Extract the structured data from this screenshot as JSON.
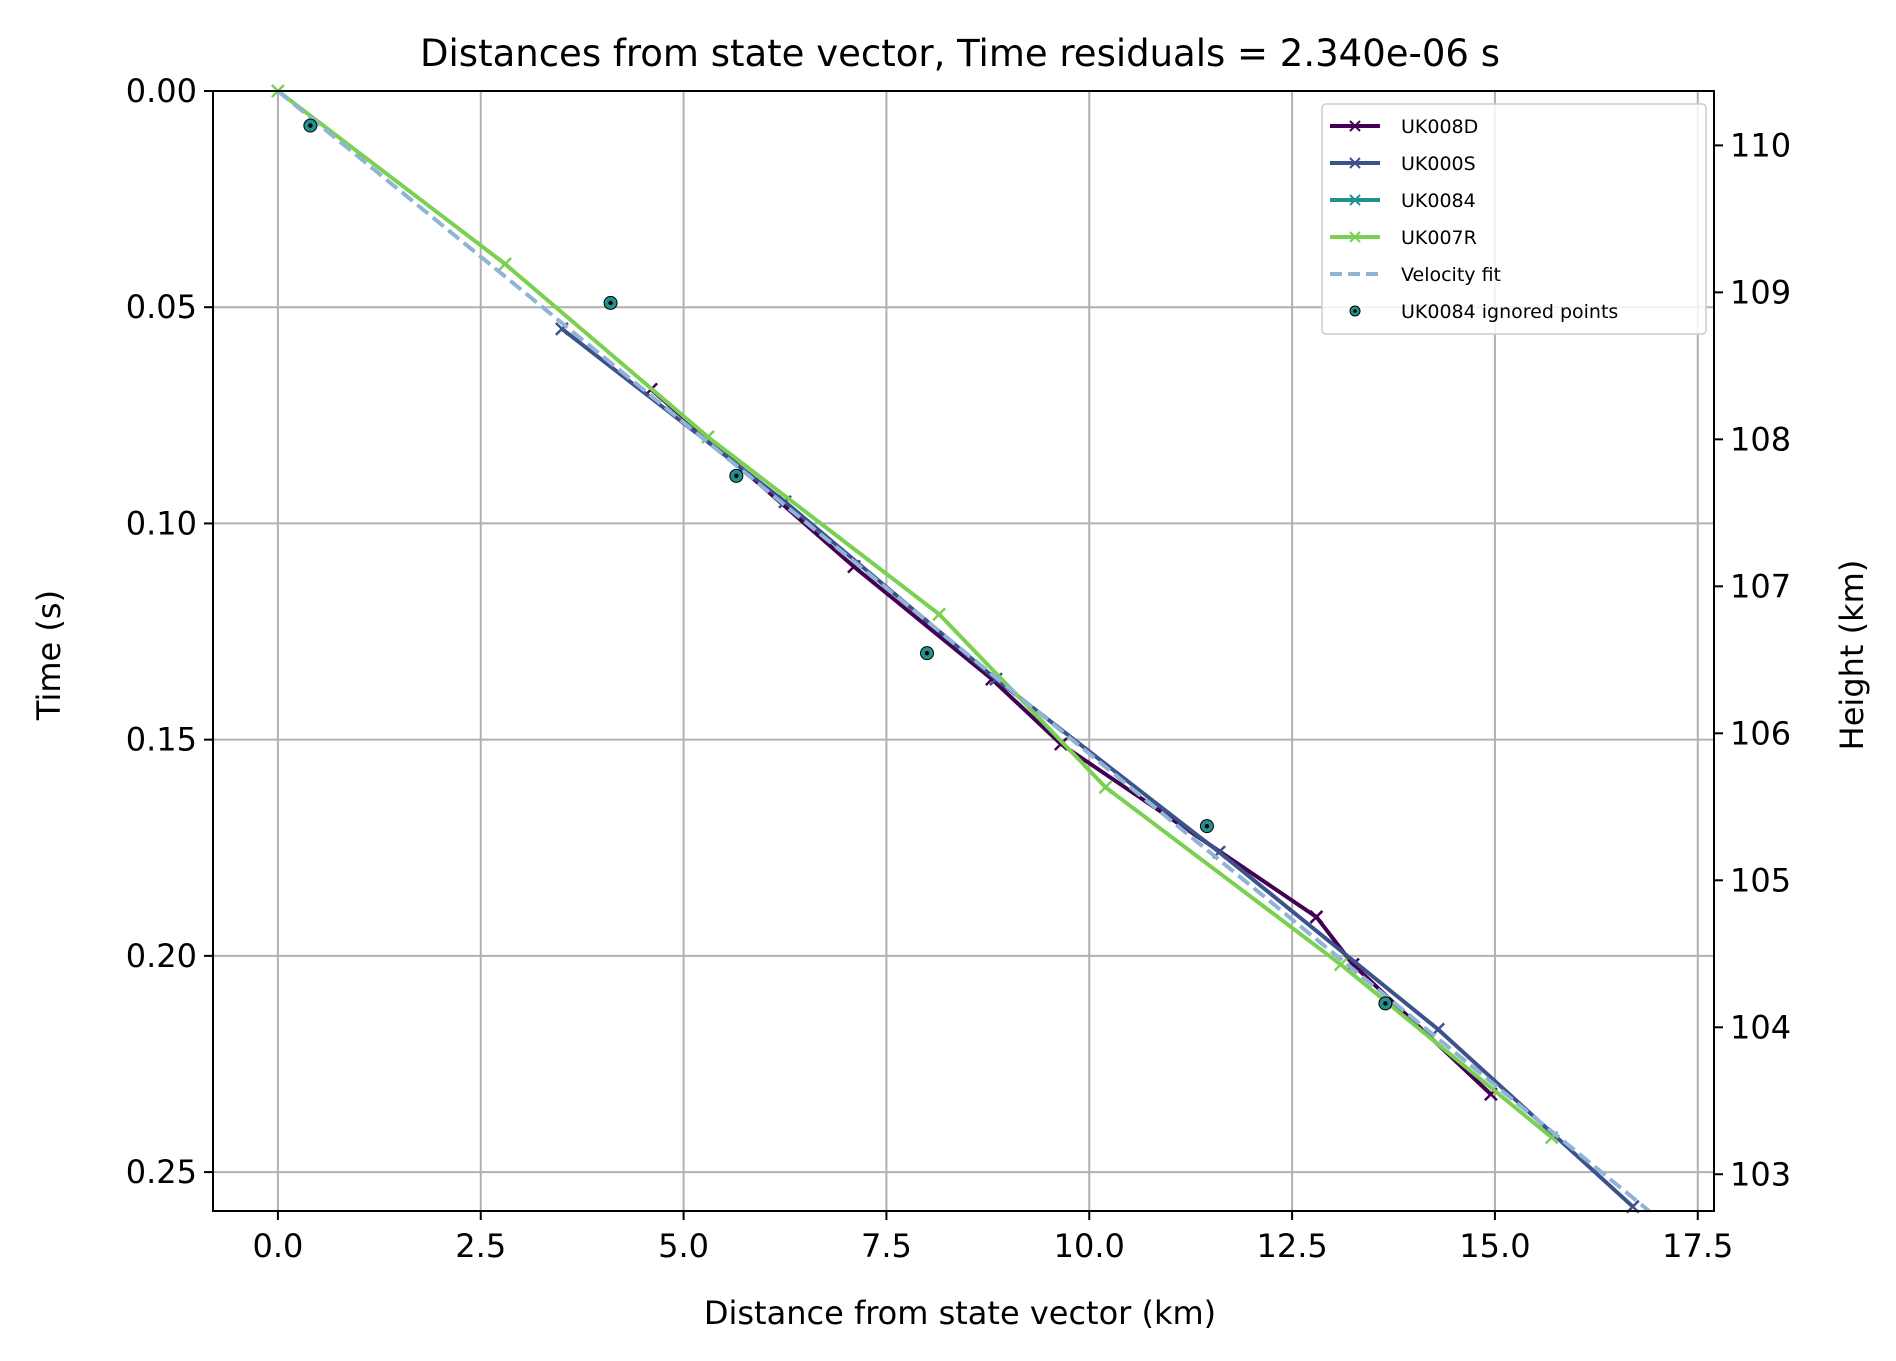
{
  "chart_data": {
    "type": "line",
    "title": "Distances from state vector, Time residuals = 2.340e-06 s",
    "xlabel": "Distance from state vector (km)",
    "ylabel": "Time (s)",
    "y2label": "Height (km)",
    "xlim": [
      -0.8,
      17.7
    ],
    "ylim": [
      0.259,
      0.0
    ],
    "y2lim": [
      102.75,
      110.37
    ],
    "y_inverted": true,
    "grid": true,
    "legend_position": "upper right",
    "xticks": [
      {
        "value": 0.0,
        "label": "0.0"
      },
      {
        "value": 2.5,
        "label": "2.5"
      },
      {
        "value": 5.0,
        "label": "5.0"
      },
      {
        "value": 7.5,
        "label": "7.5"
      },
      {
        "value": 10.0,
        "label": "10.0"
      },
      {
        "value": 12.5,
        "label": "12.5"
      },
      {
        "value": 15.0,
        "label": "15.0"
      },
      {
        "value": 17.5,
        "label": "17.5"
      }
    ],
    "yticks": [
      {
        "value": 0.0,
        "label": "0.00"
      },
      {
        "value": 0.05,
        "label": "0.05"
      },
      {
        "value": 0.1,
        "label": "0.10"
      },
      {
        "value": 0.15,
        "label": "0.15"
      },
      {
        "value": 0.2,
        "label": "0.20"
      },
      {
        "value": 0.25,
        "label": "0.25"
      }
    ],
    "y2ticks": [
      {
        "value": 103,
        "label": "103"
      },
      {
        "value": 104,
        "label": "104"
      },
      {
        "value": 105,
        "label": "105"
      },
      {
        "value": 106,
        "label": "106"
      },
      {
        "value": 107,
        "label": "107"
      },
      {
        "value": 108,
        "label": "108"
      },
      {
        "value": 109,
        "label": "109"
      },
      {
        "value": 110,
        "label": "110"
      }
    ],
    "series": [
      {
        "name": "UK008D",
        "color": "#440154",
        "marker": "x",
        "x": [
          4.6,
          7.1,
          8.8,
          9.65,
          12.8,
          13.25,
          14.95
        ],
        "y": [
          0.069,
          0.11,
          0.136,
          0.151,
          0.191,
          0.202,
          0.232
        ]
      },
      {
        "name": "UK000S",
        "color": "#3b528b",
        "marker": "x",
        "x": [
          3.5,
          6.25,
          8.85,
          11.6,
          14.3,
          16.7
        ],
        "y": [
          0.055,
          0.095,
          0.136,
          0.176,
          0.217,
          0.258
        ]
      },
      {
        "name": "UK0084",
        "color": "#21918c",
        "marker": "x",
        "x": [],
        "y": []
      },
      {
        "name": "UK007R",
        "color": "#7ad151",
        "marker": "x",
        "x": [
          0.0,
          2.8,
          5.3,
          8.15,
          10.2,
          13.1,
          15.7
        ],
        "y": [
          0.0,
          0.04,
          0.08,
          0.121,
          0.161,
          0.202,
          0.242
        ]
      },
      {
        "name": "Velocity fit",
        "color": "#8fb4d6",
        "style": "dashed",
        "x": [
          0.0,
          16.9
        ],
        "y": [
          0.0,
          0.259
        ]
      }
    ],
    "scatter": {
      "name": "UK0084 ignored points",
      "color": "#21918c",
      "edge_color": "#000000",
      "x": [
        0.4,
        4.1,
        5.65,
        8.0,
        11.45,
        13.65
      ],
      "y": [
        0.008,
        0.049,
        0.089,
        0.13,
        0.17,
        0.211
      ]
    }
  }
}
